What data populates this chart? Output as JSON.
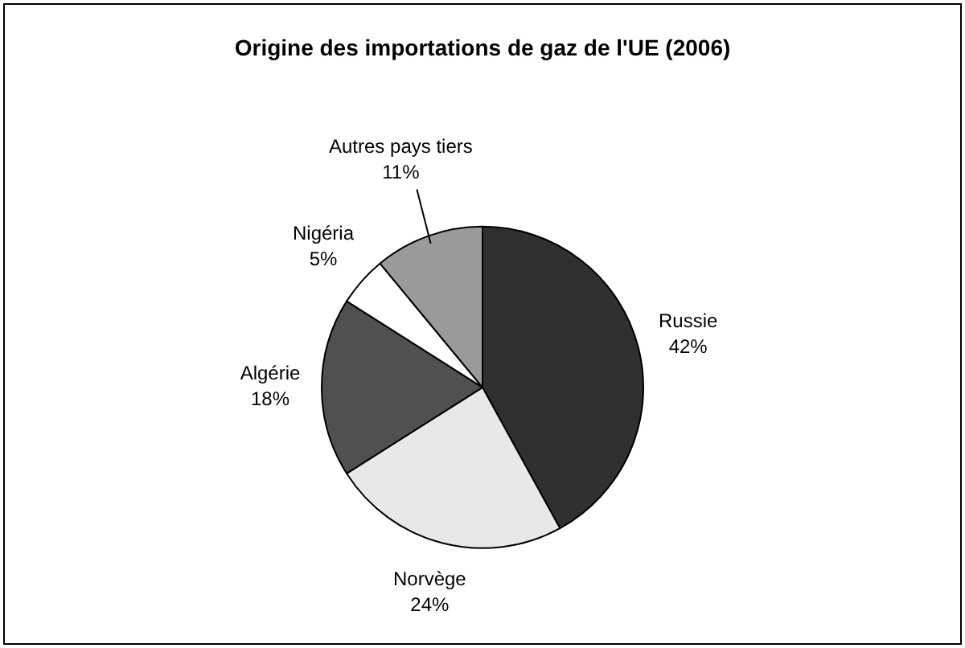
{
  "chart_data": {
    "type": "pie",
    "title": "Origine des importations de gaz de l'UE (2006)",
    "categories": [
      "Russie",
      "Norvège",
      "Algérie",
      "Nigéria",
      "Autres pays tiers"
    ],
    "values": [
      42,
      24,
      18,
      5,
      11
    ],
    "value_labels": [
      "42%",
      "24%",
      "18%",
      "5%",
      "11%"
    ],
    "colors": [
      "#303030",
      "#e8e8e8",
      "#505050",
      "#ffffff",
      "#9a9a9a"
    ],
    "legend": false
  }
}
